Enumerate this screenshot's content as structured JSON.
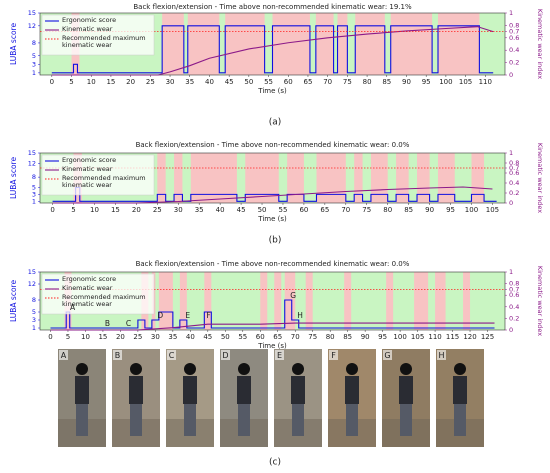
{
  "chart_data": [
    {
      "type": "line",
      "panel_label": "(a)",
      "title": "Back flexion/extension - Time above non-recommended kinematic wear: 19.1%",
      "xlabel": "Time (s)",
      "ylabel": "LUBA score",
      "y2label": "Kinematic wear index",
      "xlim": [
        -3,
        115
      ],
      "xticks": [
        0,
        5,
        10,
        15,
        20,
        25,
        30,
        35,
        40,
        45,
        50,
        55,
        60,
        65,
        70,
        75,
        80,
        85,
        90,
        95,
        100,
        105,
        110
      ],
      "ylim": [
        0.5,
        15
      ],
      "yticks": [
        1,
        3,
        5,
        8,
        12,
        15
      ],
      "y2lim": [
        0,
        1
      ],
      "y2ticks": [
        0,
        0.2,
        0.4,
        0.6,
        0.7,
        0.8,
        1
      ],
      "background_color": "#c9f5c2",
      "band_color": "#f8c3c3",
      "bands": [
        [
          5,
          7
        ],
        [
          28,
          33.5
        ],
        [
          34.5,
          42.5
        ],
        [
          44,
          54
        ],
        [
          56,
          65.5
        ],
        [
          67,
          71.5
        ],
        [
          72.5,
          75
        ],
        [
          77,
          84.5
        ],
        [
          86,
          96.5
        ],
        [
          98,
          108.5
        ]
      ],
      "series": [
        {
          "name": "Ergonomic score",
          "color": "#1010e0",
          "x": [
            0,
            5.5,
            5.5,
            6.5,
            6.5,
            28,
            28,
            33.5,
            33.5,
            34.5,
            34.5,
            42.5,
            42.5,
            44,
            44,
            54,
            54,
            56,
            56,
            65.5,
            65.5,
            67,
            67,
            71.5,
            71.5,
            72.5,
            72.5,
            75,
            75,
            77,
            77,
            84.5,
            84.5,
            86,
            86,
            96.5,
            96.5,
            98,
            98,
            108.5,
            108.5,
            112
          ],
          "values": [
            1,
            1,
            3,
            3,
            1,
            1,
            12,
            12,
            1,
            1,
            12,
            12,
            1,
            1,
            12,
            12,
            1,
            1,
            12,
            12,
            1,
            1,
            12,
            12,
            1,
            1,
            12,
            12,
            1,
            1,
            12,
            12,
            1,
            1,
            12,
            12,
            1,
            1,
            12,
            12,
            1,
            1
          ]
        },
        {
          "name": "Kinematic wear",
          "color": "#8b1a89",
          "axis": "y2",
          "x": [
            0,
            27,
            30,
            35,
            40,
            50,
            60,
            70,
            80,
            90,
            100,
            108,
            112
          ],
          "values": [
            0,
            0,
            0.05,
            0.15,
            0.27,
            0.42,
            0.52,
            0.6,
            0.66,
            0.71,
            0.75,
            0.78,
            0.7
          ]
        },
        {
          "name": "Recommended maximum kinematic wear",
          "color": "#ff2020",
          "axis": "y2",
          "value": 0.7
        }
      ]
    },
    {
      "type": "line",
      "panel_label": "(b)",
      "title": "Back flexion/extension - Time above non-recommended kinematic wear: 0.0%",
      "xlabel": "Time (s)",
      "ylabel": "LUBA score",
      "y2label": "Kinematic wear index",
      "xlim": [
        -3,
        108
      ],
      "xticks": [
        0,
        5,
        10,
        15,
        20,
        25,
        30,
        35,
        40,
        45,
        50,
        55,
        60,
        65,
        70,
        75,
        80,
        85,
        90,
        95,
        100,
        105
      ],
      "ylim": [
        0.5,
        15
      ],
      "yticks": [
        1,
        3,
        5,
        8,
        12,
        15
      ],
      "y2lim": [
        0,
        1
      ],
      "y2ticks": [
        0,
        0.2,
        0.4,
        0.6,
        0.7,
        0.8,
        1
      ],
      "background_color": "#c9f5c2",
      "band_color": "#f8c3c3",
      "bands": [
        [
          5,
          7
        ],
        [
          25,
          27
        ],
        [
          29,
          31
        ],
        [
          33,
          44
        ],
        [
          46,
          54
        ],
        [
          56,
          60
        ],
        [
          63,
          70
        ],
        [
          72,
          74
        ],
        [
          76,
          80
        ],
        [
          82,
          85
        ],
        [
          87,
          90
        ],
        [
          92,
          96
        ],
        [
          100,
          103
        ]
      ],
      "series": [
        {
          "name": "Ergonomic score",
          "color": "#1010e0",
          "x": [
            0,
            5.5,
            5.5,
            6.5,
            6.5,
            25,
            25,
            27,
            27,
            29,
            29,
            31,
            31,
            33,
            33,
            44,
            44,
            46,
            46,
            54,
            54,
            56,
            56,
            60,
            60,
            63,
            63,
            70,
            70,
            72,
            72,
            74,
            74,
            76,
            76,
            80,
            80,
            82,
            82,
            85,
            85,
            87,
            87,
            90,
            90,
            92,
            92,
            96,
            96,
            100,
            100,
            103,
            103,
            106
          ],
          "values": [
            1,
            1,
            5,
            5,
            1,
            1,
            3,
            3,
            1,
            1,
            3,
            3,
            1,
            1,
            3,
            3,
            1,
            1,
            3,
            3,
            1,
            1,
            3,
            3,
            1,
            1,
            3,
            3,
            1,
            1,
            3,
            3,
            1,
            1,
            3,
            3,
            1,
            1,
            3,
            3,
            1,
            1,
            3,
            3,
            1,
            1,
            3,
            3,
            1,
            1,
            3,
            3,
            1,
            1
          ]
        },
        {
          "name": "Kinematic wear",
          "color": "#8b1a89",
          "axis": "y2",
          "x": [
            0,
            20,
            30,
            40,
            50,
            60,
            70,
            80,
            90,
            98,
            105
          ],
          "values": [
            0,
            0,
            0.03,
            0.08,
            0.13,
            0.18,
            0.23,
            0.27,
            0.3,
            0.32,
            0.28
          ]
        },
        {
          "name": "Recommended maximum kinematic wear",
          "color": "#ff2020",
          "axis": "y2",
          "value": 0.7
        }
      ]
    },
    {
      "type": "line",
      "panel_label": "(c)",
      "title": "Back flexion/extension - Time above non-recommended kinematic wear: 0.0%",
      "xlabel": "Time (s)",
      "ylabel": "LUBA score",
      "y2label": "Kinematic wear index",
      "xlim": [
        -3,
        130
      ],
      "xticks": [
        0,
        5,
        10,
        15,
        20,
        25,
        30,
        35,
        40,
        45,
        50,
        55,
        60,
        65,
        70,
        75,
        80,
        85,
        90,
        95,
        100,
        105,
        110,
        115,
        120,
        125
      ],
      "ylim": [
        0.5,
        15
      ],
      "yticks": [
        1,
        3,
        5,
        8,
        12,
        15
      ],
      "y2lim": [
        0,
        1
      ],
      "y2ticks": [
        0,
        0.2,
        0.4,
        0.6,
        0.7,
        0.8,
        1
      ],
      "background_color": "#c9f5c2",
      "band_color": "#f8c3c3",
      "bands": [
        [
          4,
          6
        ],
        [
          26,
          28
        ],
        [
          29,
          30
        ],
        [
          31,
          35
        ],
        [
          37,
          39
        ],
        [
          44,
          46
        ],
        [
          60,
          62
        ],
        [
          64,
          66
        ],
        [
          67,
          70
        ],
        [
          73,
          75
        ],
        [
          84,
          86
        ],
        [
          96,
          98
        ],
        [
          104,
          108
        ],
        [
          110,
          113
        ],
        [
          118,
          120
        ]
      ],
      "series": [
        {
          "name": "Ergonomic score",
          "color": "#1010e0",
          "x": [
            0,
            4.5,
            4.5,
            5.5,
            5.5,
            25,
            25,
            27,
            27,
            29,
            29,
            31,
            31,
            35,
            35,
            37,
            37,
            39,
            39,
            44,
            44,
            46,
            46,
            67,
            67,
            69,
            69,
            71,
            71,
            127
          ],
          "values": [
            1,
            1,
            5,
            5,
            1,
            1,
            3,
            3,
            1,
            1,
            3,
            3,
            5,
            5,
            1,
            1,
            3,
            3,
            1,
            1,
            5,
            5,
            1,
            1,
            8,
            8,
            3,
            3,
            1,
            1
          ]
        },
        {
          "name": "Kinematic wear",
          "color": "#8b1a89",
          "axis": "y2",
          "x": [
            0,
            25,
            35,
            45,
            50,
            60,
            70,
            80,
            127
          ],
          "values": [
            0,
            0,
            0.04,
            0.1,
            0.1,
            0.1,
            0.12,
            0.12,
            0.12
          ]
        },
        {
          "name": "Recommended maximum kinematic wear",
          "color": "#ff2020",
          "axis": "y2",
          "value": 0.7
        }
      ],
      "annotations": [
        {
          "label": "A",
          "x": 5,
          "y": 5
        },
        {
          "label": "B",
          "x": 15,
          "y": 1
        },
        {
          "label": "C",
          "x": 21,
          "y": 1
        },
        {
          "label": "D",
          "x": 30,
          "y": 3
        },
        {
          "label": "E",
          "x": 38,
          "y": 3
        },
        {
          "label": "F",
          "x": 44,
          "y": 3
        },
        {
          "label": "G",
          "x": 68,
          "y": 8
        },
        {
          "label": "H",
          "x": 70,
          "y": 3
        }
      ]
    }
  ],
  "photo_labels": [
    "A",
    "B",
    "C",
    "D",
    "E",
    "F",
    "G",
    "H"
  ]
}
